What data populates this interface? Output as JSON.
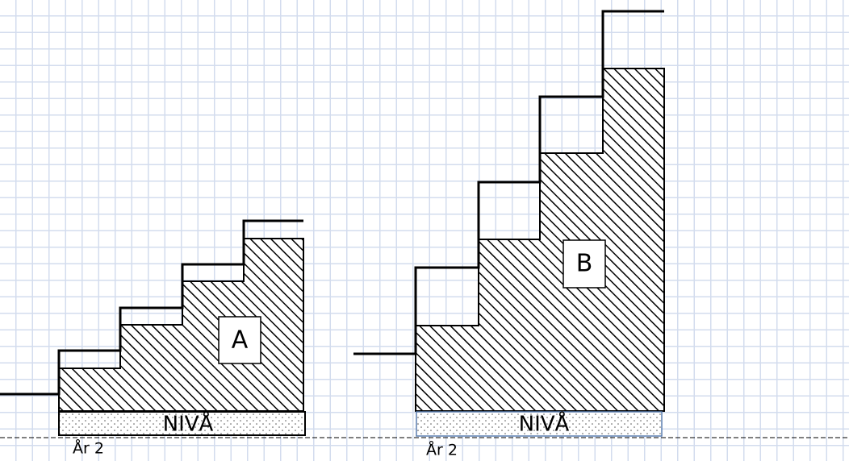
{
  "diagrams": [
    {
      "label": "A",
      "base_label": "NIVÅ",
      "year_label": "År 2"
    },
    {
      "label": "B",
      "base_label": "NIVÅ",
      "year_label": "År 2"
    }
  ]
}
